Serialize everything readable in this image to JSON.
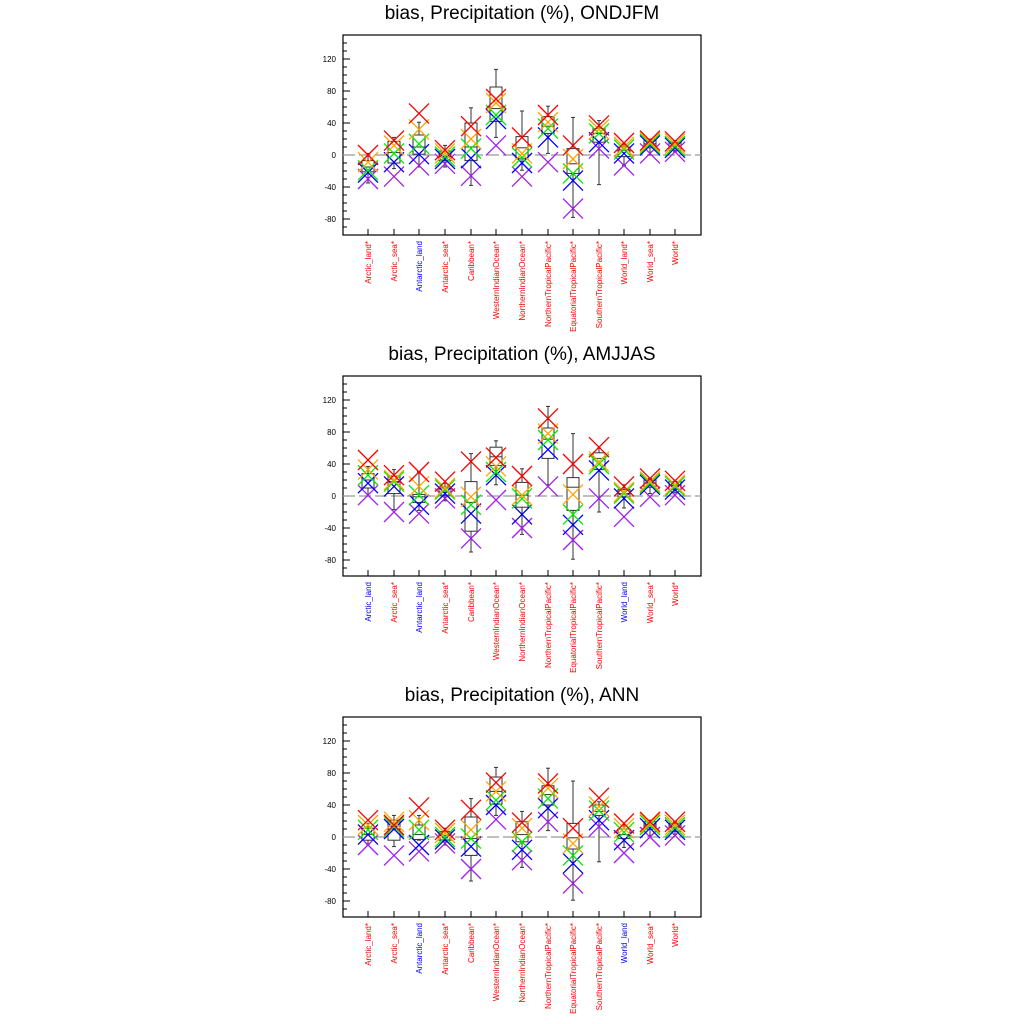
{
  "marker_colors": {
    "red": "#ff0000",
    "orange": "#ffa500",
    "green": "#00ee00",
    "blue": "#0000ff",
    "purple": "#a020f0"
  },
  "chart_data": [
    {
      "type": "box",
      "title": "bias, Precipitation (%), ONDJFM",
      "ylim": [
        -100,
        150
      ],
      "yticks": [
        120,
        80,
        40,
        0,
        -40,
        -80
      ],
      "categories": [
        {
          "label": "Arctic_land*",
          "color": "#ff0000"
        },
        {
          "label": "Arctic_sea*",
          "color": "#ff0000"
        },
        {
          "label": "Antarctic_land",
          "color": "#0000ff"
        },
        {
          "label": "Antarctic_sea*",
          "color": "#ff0000"
        },
        {
          "label": "Caribbean*",
          "color": "#ff0000"
        },
        {
          "label": "WesternIndianOcean*",
          "color": "#ff0000"
        },
        {
          "label": "NorthernIndianOcean*",
          "color": "#ff0000"
        },
        {
          "label": "NorthernTropicalPacific*",
          "color": "#ff0000"
        },
        {
          "label": "EquatorialTropicalPacific*",
          "color": "#ff0000"
        },
        {
          "label": "SouthernTropicalPacific*",
          "color": "#ff0000"
        },
        {
          "label": "World_land*",
          "color": "#ff0000"
        },
        {
          "label": "World_sea*",
          "color": "#ff0000"
        },
        {
          "label": "World*",
          "color": "#ff0000"
        }
      ],
      "boxes": [
        [
          -35,
          -21,
          -15,
          -7,
          2
        ],
        [
          -17,
          -10,
          3,
          17,
          22
        ],
        [
          -15,
          1,
          10,
          25,
          41
        ],
        [
          -15,
          -7,
          -2,
          5,
          12
        ],
        [
          -38,
          -7,
          10,
          40,
          59
        ],
        [
          22,
          42,
          58,
          85,
          107
        ],
        [
          -19,
          -4,
          9,
          23,
          55
        ],
        [
          2,
          27,
          36,
          48,
          61
        ],
        [
          -78,
          -23,
          -11,
          8,
          47
        ],
        [
          -37,
          16,
          27,
          33,
          43
        ],
        [
          -13,
          -2,
          6,
          10,
          14
        ],
        [
          0,
          9,
          14,
          19,
          20
        ],
        [
          4,
          6,
          11,
          16,
          18
        ]
      ],
      "markers": {
        "red": [
          0,
          18,
          52,
          6,
          36,
          70,
          22,
          50,
          12,
          37,
          15,
          18,
          17
        ],
        "orange": [
          -9,
          12,
          32,
          2,
          20,
          65,
          2,
          41,
          -5,
          32,
          10,
          16,
          14
        ],
        "green": [
          -19,
          2,
          14,
          -2,
          8,
          50,
          -3,
          33,
          -23,
          27,
          7,
          14,
          11
        ],
        "blue": [
          -22,
          -9,
          1,
          -5,
          -4,
          45,
          -10,
          22,
          -32,
          16,
          2,
          12,
          9
        ],
        "purple": [
          -30,
          -27,
          -13,
          -11,
          -26,
          12,
          -27,
          -9,
          -67,
          8,
          -13,
          2,
          4
        ]
      }
    },
    {
      "type": "box",
      "title": "bias, Precipitation (%), AMJJAS",
      "ylim": [
        -100,
        150
      ],
      "yticks": [
        120,
        80,
        40,
        0,
        -40,
        -80
      ],
      "categories": [
        {
          "label": "Arctic_land",
          "color": "#0000ff"
        },
        {
          "label": "Arctic_sea*",
          "color": "#ff0000"
        },
        {
          "label": "Antarctic_land",
          "color": "#0000ff"
        },
        {
          "label": "Antarctic_sea*",
          "color": "#ff0000"
        },
        {
          "label": "Caribbean*",
          "color": "#ff0000"
        },
        {
          "label": "WesternIndianOcean*",
          "color": "#ff0000"
        },
        {
          "label": "NorthernIndianOcean*",
          "color": "#ff0000"
        },
        {
          "label": "NorthernTropicalPacific*",
          "color": "#ff0000"
        },
        {
          "label": "EquatorialTropicalPacific*",
          "color": "#ff0000"
        },
        {
          "label": "SouthernTropicalPacific*",
          "color": "#ff0000"
        },
        {
          "label": "World_land",
          "color": "#0000ff"
        },
        {
          "label": "World_sea*",
          "color": "#ff0000"
        },
        {
          "label": "World*",
          "color": "#ff0000"
        }
      ],
      "boxes": [
        [
          0,
          10,
          20,
          28,
          37
        ],
        [
          -17,
          3,
          18,
          25,
          33
        ],
        [
          -18,
          -8,
          -1,
          2,
          30
        ],
        [
          -6,
          1,
          5,
          10,
          16
        ],
        [
          -70,
          -44,
          -8,
          18,
          53
        ],
        [
          14,
          38,
          49,
          61,
          69
        ],
        [
          -48,
          -14,
          1,
          17,
          34
        ],
        [
          14,
          47,
          71,
          85,
          112
        ],
        [
          -79,
          -18,
          11,
          23,
          78
        ],
        [
          -20,
          33,
          47,
          54,
          60
        ],
        [
          -15,
          -1,
          3,
          8,
          14
        ],
        [
          3,
          11,
          16,
          20,
          22
        ],
        [
          4,
          8,
          13,
          18,
          20
        ]
      ],
      "markers": {
        "red": [
          45,
          26,
          30,
          18,
          43,
          48,
          25,
          97,
          40,
          61,
          12,
          22,
          19
        ],
        "orange": [
          33,
          20,
          12,
          10,
          -1,
          37,
          1,
          78,
          2,
          43,
          5,
          18,
          14
        ],
        "green": [
          26,
          18,
          1,
          8,
          -11,
          30,
          -3,
          70,
          -23,
          40,
          3,
          16,
          12
        ],
        "blue": [
          16,
          12,
          -11,
          3,
          -22,
          26,
          -23,
          58,
          -36,
          32,
          -3,
          14,
          8
        ],
        "purple": [
          1,
          -20,
          -22,
          -3,
          -53,
          -5,
          -40,
          12,
          -55,
          -3,
          -26,
          -1,
          1
        ]
      }
    },
    {
      "type": "box",
      "title": "bias, Precipitation (%), ANN",
      "ylim": [
        -100,
        150
      ],
      "yticks": [
        120,
        80,
        40,
        0,
        -40,
        -80
      ],
      "categories": [
        {
          "label": "Arctic_land*",
          "color": "#ff0000"
        },
        {
          "label": "Arctic_sea*",
          "color": "#ff0000"
        },
        {
          "label": "Antarctic_land",
          "color": "#0000ff"
        },
        {
          "label": "Antarctic_sea*",
          "color": "#ff0000"
        },
        {
          "label": "Caribbean*",
          "color": "#ff0000"
        },
        {
          "label": "WesternIndianOcean*",
          "color": "#ff0000"
        },
        {
          "label": "NorthernIndianOcean*",
          "color": "#ff0000"
        },
        {
          "label": "NorthernTropicalPacific*",
          "color": "#ff0000"
        },
        {
          "label": "EquatorialTropicalPacific*",
          "color": "#ff0000"
        },
        {
          "label": "SouthernTropicalPacific*",
          "color": "#ff0000"
        },
        {
          "label": "World_land",
          "color": "#0000ff"
        },
        {
          "label": "World_sea*",
          "color": "#ff0000"
        },
        {
          "label": "World*",
          "color": "#ff0000"
        }
      ],
      "boxes": [
        [
          -9,
          -4,
          3,
          11,
          17
        ],
        [
          -12,
          -4,
          10,
          21,
          27
        ],
        [
          -4,
          -3,
          3,
          15,
          27
        ],
        [
          -10,
          -4,
          2,
          7,
          11
        ],
        [
          -55,
          -23,
          -2,
          25,
          48
        ],
        [
          27,
          41,
          57,
          75,
          87
        ],
        [
          -38,
          -6,
          3,
          19,
          32
        ],
        [
          8,
          40,
          53,
          64,
          86
        ],
        [
          -79,
          -15,
          -1,
          17,
          70
        ],
        [
          -31,
          27,
          32,
          40,
          44
        ],
        [
          -13,
          -2,
          3,
          10,
          15
        ],
        [
          2,
          10,
          15,
          19,
          21
        ],
        [
          3,
          7,
          12,
          17,
          19
        ]
      ],
      "markers": {
        "red": [
          21,
          15,
          37,
          9,
          34,
          68,
          18,
          67,
          11,
          49,
          17,
          19,
          19
        ],
        "orange": [
          15,
          19,
          21,
          5,
          9,
          57,
          11,
          61,
          -8,
          38,
          11,
          17,
          15
        ],
        "green": [
          9,
          13,
          9,
          0,
          -2,
          46,
          -6,
          48,
          -23,
          33,
          6,
          15,
          12
        ],
        "blue": [
          3,
          10,
          -10,
          -3,
          -12,
          40,
          -16,
          36,
          -33,
          21,
          -4,
          11,
          9
        ],
        "purple": [
          -10,
          -23,
          -18,
          -8,
          -40,
          22,
          -29,
          19,
          -58,
          13,
          -20,
          0,
          2
        ]
      }
    }
  ]
}
